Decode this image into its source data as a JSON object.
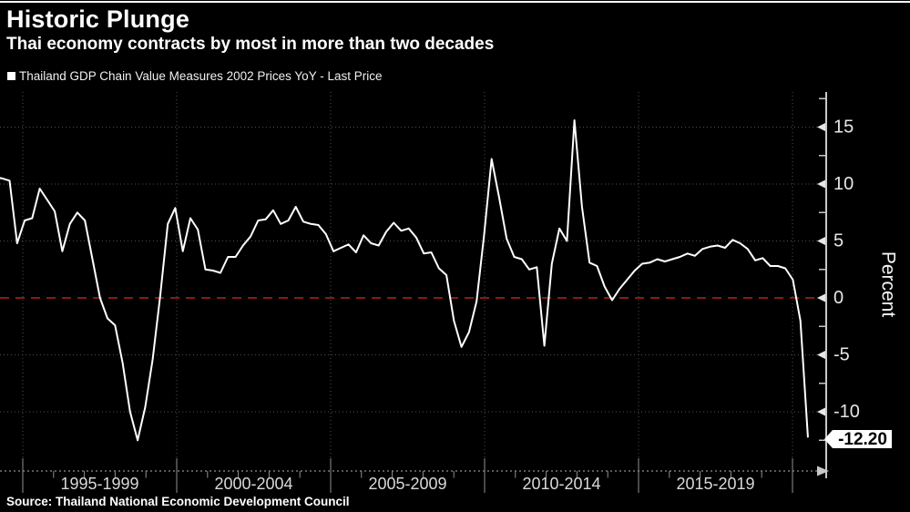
{
  "header": {
    "title": "Historic Plunge",
    "subtitle": "Thai economy contracts by most in more than two decades",
    "legend_label": "Thailand GDP Chain Value Measures 2002 Prices YoY - Last Price"
  },
  "footer": {
    "source": "Source: Thailand National Economic Development Council"
  },
  "chart_data": {
    "type": "line",
    "title": "Historic Plunge",
    "subtitle": "Thai economy contracts by most in more than two decades",
    "series_name": "Thailand GDP Chain Value Measures 2002 Prices YoY - Last Price",
    "frequency": "quarterly",
    "unit_label": "Percent",
    "last_price": "-12.20",
    "zero_line": true,
    "grid": "dotted",
    "x_axis": {
      "block_labels": [
        "1995-1999",
        "2000-2004",
        "2005-2009",
        "2010-2014",
        "2015-2019"
      ],
      "years_per_block": 5
    },
    "y_axis": {
      "ticks": [
        15,
        10,
        5,
        0,
        -5,
        -10
      ],
      "minor_ticks": [
        17.5,
        12.5,
        7.5,
        2.5,
        -2.5,
        -7.5,
        -12.5
      ],
      "range_approx": [
        -15,
        18
      ]
    },
    "values_pct_yoy": [
      10.6,
      10.5,
      10.3,
      4.8,
      6.8,
      7.0,
      9.6,
      8.6,
      7.6,
      4.1,
      6.5,
      7.5,
      6.8,
      3.4,
      0.0,
      -1.8,
      -2.4,
      -5.7,
      -10.0,
      -12.5,
      -9.6,
      -5.4,
      0.2,
      6.5,
      7.9,
      4.1,
      7.0,
      6.0,
      2.5,
      2.4,
      2.2,
      3.6,
      3.6,
      4.6,
      5.4,
      6.8,
      6.9,
      7.7,
      6.5,
      6.8,
      8.0,
      6.7,
      6.5,
      6.4,
      5.6,
      4.1,
      4.4,
      4.7,
      4.0,
      5.5,
      4.8,
      4.6,
      5.8,
      6.6,
      5.9,
      6.1,
      5.3,
      3.9,
      4.0,
      2.6,
      2.0,
      -2.0,
      -4.3,
      -3.0,
      -0.3,
      5.5,
      12.2,
      8.8,
      5.2,
      3.6,
      3.4,
      2.5,
      2.7,
      -4.2,
      3.0,
      6.1,
      5.0,
      15.6,
      8.0,
      3.1,
      2.8,
      1.0,
      -0.2,
      0.8,
      1.6,
      2.4,
      3.0,
      3.1,
      3.4,
      3.2,
      3.4,
      3.6,
      3.9,
      3.7,
      4.3,
      4.5,
      4.6,
      4.4,
      5.1,
      4.8,
      4.3,
      3.3,
      3.5,
      2.8,
      2.8,
      2.6,
      1.6,
      -2.0,
      -12.2
    ],
    "colors": {
      "background": "#000000",
      "line": "#ffffff",
      "zero_line": "#b22424",
      "grid": "#4f4f4f",
      "axis": "#c8c8c8",
      "tick": "#8f8f8f",
      "last_price_bg": "#ffffff",
      "last_price_text": "#000000"
    }
  }
}
